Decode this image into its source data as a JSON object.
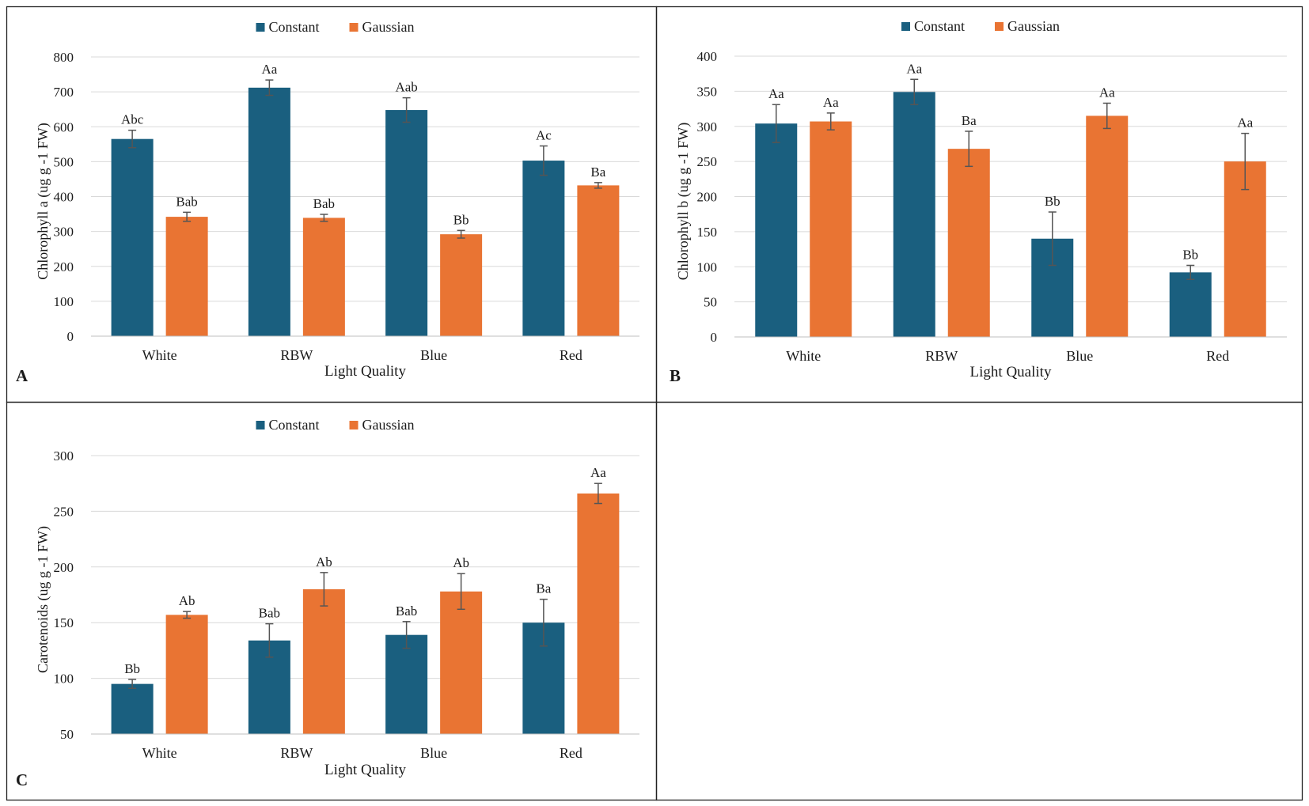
{
  "colors": {
    "constant": "#1a5f7f",
    "gaussian": "#e97433",
    "grid": "#d9d9d9",
    "errorbar": "#555555",
    "border": "#222222"
  },
  "chart_data": [
    {
      "panel": "A",
      "type": "bar",
      "categories": [
        "White",
        "RBW",
        "Blue",
        "Red"
      ],
      "xlabel": "Light Quality",
      "ylabel": "Chlorophyll  a (ug g -1 FW)",
      "ylim": [
        0,
        800
      ],
      "yticks": [
        0,
        100,
        200,
        300,
        400,
        500,
        600,
        700,
        800
      ],
      "legend_position": "top-center",
      "series": [
        {
          "name": "Constant",
          "values": [
            565,
            712,
            648,
            503
          ],
          "errors": [
            25,
            22,
            35,
            42
          ],
          "labels": [
            "Abc",
            "Aa",
            "Aab",
            "Ac"
          ]
        },
        {
          "name": "Gaussian",
          "values": [
            342,
            339,
            292,
            432
          ],
          "errors": [
            13,
            10,
            11,
            8
          ],
          "labels": [
            "Bab",
            "Bab",
            "Bb",
            "Ba"
          ]
        }
      ]
    },
    {
      "panel": "B",
      "type": "bar",
      "categories": [
        "White",
        "RBW",
        "Blue",
        "Red"
      ],
      "xlabel": "Light Quality",
      "ylabel": "Chlorophyll  b (ug g -1 FW)",
      "ylim": [
        0,
        400
      ],
      "yticks": [
        0,
        50,
        100,
        150,
        200,
        250,
        300,
        350,
        400
      ],
      "legend_position": "top-center",
      "series": [
        {
          "name": "Constant",
          "values": [
            304,
            349,
            140,
            92
          ],
          "errors": [
            27,
            18,
            38,
            10
          ],
          "labels": [
            "Aa",
            "Aa",
            "Bb",
            "Bb"
          ]
        },
        {
          "name": "Gaussian",
          "values": [
            307,
            268,
            315,
            250
          ],
          "errors": [
            12,
            25,
            18,
            40
          ],
          "labels": [
            "Aa",
            "Ba",
            "Aa",
            "Aa"
          ]
        }
      ]
    },
    {
      "panel": "C",
      "type": "bar",
      "categories": [
        "White",
        "RBW",
        "Blue",
        "Red"
      ],
      "xlabel": "Light Quality",
      "ylabel": "Carotenoids (ug g -1 FW)",
      "ylim": [
        50,
        300
      ],
      "yticks": [
        50,
        100,
        150,
        200,
        250,
        300
      ],
      "legend_position": "top-center",
      "series": [
        {
          "name": "Constant",
          "values": [
            95,
            134,
            139,
            150
          ],
          "errors": [
            4,
            15,
            12,
            21
          ],
          "labels": [
            "Bb",
            "Bab",
            "Bab",
            "Ba"
          ]
        },
        {
          "name": "Gaussian",
          "values": [
            157,
            180,
            178,
            266
          ],
          "errors": [
            3,
            15,
            16,
            9
          ],
          "labels": [
            "Ab",
            "Ab",
            "Ab",
            "Aa"
          ]
        }
      ]
    }
  ]
}
